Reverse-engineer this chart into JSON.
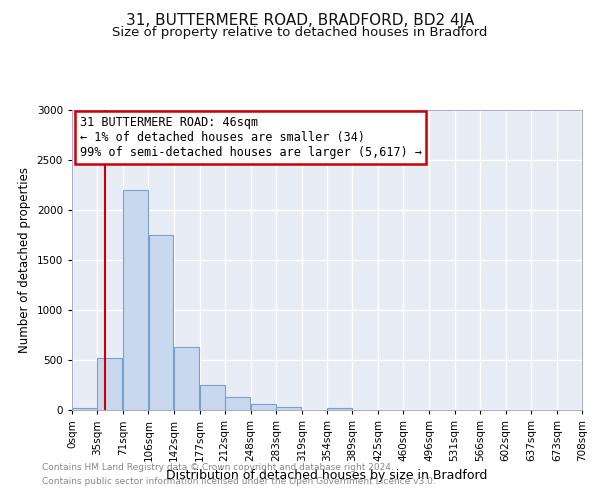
{
  "title1": "31, BUTTERMERE ROAD, BRADFORD, BD2 4JA",
  "title2": "Size of property relative to detached houses in Bradford",
  "xlabel": "Distribution of detached houses by size in Bradford",
  "ylabel": "Number of detached properties",
  "bar_left_edges": [
    0,
    35,
    71,
    106,
    142,
    177,
    212,
    248,
    283,
    319,
    354,
    389,
    425,
    460,
    496,
    531,
    566,
    602,
    637,
    673
  ],
  "bar_heights": [
    20,
    525,
    2200,
    1750,
    635,
    255,
    130,
    65,
    35,
    0,
    20,
    5,
    0,
    0,
    0,
    0,
    0,
    0,
    0,
    0
  ],
  "bin_width": 35,
  "bar_facecolor": "#c8d8ee",
  "bar_edgecolor": "#7aA0cc",
  "vline_x": 46,
  "vline_color": "#cc0000",
  "ylim": [
    0,
    3000
  ],
  "xlim": [
    0,
    708
  ],
  "yticks": [
    0,
    500,
    1000,
    1500,
    2000,
    2500,
    3000
  ],
  "xtick_labels": [
    "0sqm",
    "35sqm",
    "71sqm",
    "106sqm",
    "142sqm",
    "177sqm",
    "212sqm",
    "248sqm",
    "283sqm",
    "319sqm",
    "354sqm",
    "389sqm",
    "425sqm",
    "460sqm",
    "496sqm",
    "531sqm",
    "566sqm",
    "602sqm",
    "637sqm",
    "673sqm",
    "708sqm"
  ],
  "xtick_positions": [
    0,
    35,
    71,
    106,
    142,
    177,
    212,
    248,
    283,
    319,
    354,
    389,
    425,
    460,
    496,
    531,
    566,
    602,
    637,
    673,
    708
  ],
  "annotation_box_text": "31 BUTTERMERE ROAD: 46sqm\n← 1% of detached houses are smaller (34)\n99% of semi-detached houses are larger (5,617) →",
  "annotation_box_color": "#cc0000",
  "footer1": "Contains HM Land Registry data © Crown copyright and database right 2024.",
  "footer2": "Contains public sector information licensed under the Open Government Licence v3.0.",
  "bg_color": "#ffffff",
  "plot_bg_color": "#e8edf5",
  "grid_color": "#ffffff",
  "title1_fontsize": 11,
  "title2_fontsize": 9.5,
  "tick_fontsize": 7.5,
  "ylabel_fontsize": 8.5,
  "xlabel_fontsize": 9,
  "annotation_fontsize": 8.5,
  "footer_fontsize": 6.5,
  "footer_color": "#888888"
}
